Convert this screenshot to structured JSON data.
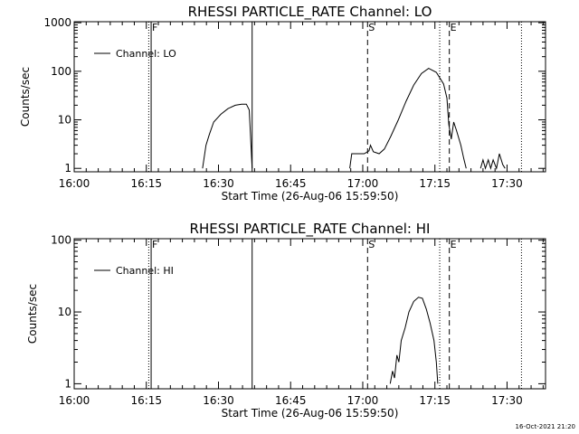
{
  "footer_timestamp": "16-Oct-2021 21:20",
  "chart_data": [
    {
      "type": "line",
      "title": "RHESSI PARTICLE_RATE Channel: LO",
      "xlabel": "Start Time (26-Aug-06 15:59:50)",
      "ylabel": "Counts/sec",
      "yscale": "log",
      "xlim": [
        "16:00",
        "17:38"
      ],
      "ylim": [
        0.85,
        1050
      ],
      "x_ticks": [
        "16:00",
        "16:15",
        "16:30",
        "16:45",
        "17:00",
        "17:15",
        "17:30"
      ],
      "y_ticks": [
        "1",
        "10",
        "100",
        "1000"
      ],
      "legend": {
        "position": "top-left",
        "entries": [
          "Channel: LO"
        ]
      },
      "vertical_markers": [
        {
          "time": "16:15.5",
          "style": "dotted",
          "label": ""
        },
        {
          "time": "16:16",
          "style": "solid",
          "label": "F"
        },
        {
          "time": "16:37",
          "style": "solid",
          "label": ""
        },
        {
          "time": "17:01",
          "style": "dashed",
          "label": "S"
        },
        {
          "time": "17:16",
          "style": "dotted",
          "label": ""
        },
        {
          "time": "17:18",
          "style": "dashed",
          "label": "E"
        },
        {
          "time": "17:33",
          "style": "dotted",
          "label": ""
        }
      ],
      "series": [
        {
          "name": "Channel: LO",
          "segments": [
            [
              [
                "16:26.7",
                1
              ],
              [
                "16:27.4",
                3
              ],
              [
                "16:28.1",
                5
              ],
              [
                "16:29",
                9
              ],
              [
                "16:30.5",
                13
              ],
              [
                "16:32",
                17
              ],
              [
                "16:33.5",
                20
              ],
              [
                "16:34.8",
                21
              ],
              [
                "16:35.8",
                21
              ],
              [
                "16:36.4",
                16
              ],
              [
                "16:37",
                1
              ]
            ],
            [
              [
                "16:57.3",
                1
              ],
              [
                "16:57.7",
                2
              ],
              [
                "16:59",
                2
              ],
              [
                "17:00.3",
                2
              ],
              [
                "17:01.3",
                2.3
              ],
              [
                "17:01.6",
                3
              ],
              [
                "17:02.2",
                2.2
              ],
              [
                "17:03.4",
                2
              ],
              [
                "17:04.5",
                2.5
              ],
              [
                "17:05.8",
                4.5
              ],
              [
                "17:07.4",
                10
              ],
              [
                "17:09",
                24
              ],
              [
                "17:10.6",
                52
              ],
              [
                "17:12.2",
                90
              ],
              [
                "17:13.7",
                115
              ],
              [
                "17:15.3",
                95
              ],
              [
                "17:16.8",
                55
              ],
              [
                "17:17.5",
                28
              ],
              [
                "17:17.9",
                8
              ],
              [
                "17:18.4",
                4
              ],
              [
                "17:18.9",
                9
              ],
              [
                "17:19.5",
                6
              ],
              [
                "17:20.4",
                3
              ],
              [
                "17:21",
                1.6
              ],
              [
                "17:21.5",
                1
              ]
            ],
            [
              [
                "17:24.5",
                1
              ],
              [
                "17:25",
                1.5
              ],
              [
                "17:25.5",
                1
              ],
              [
                "17:26.1",
                1.5
              ],
              [
                "17:26.6",
                1
              ],
              [
                "17:27.1",
                1.5
              ],
              [
                "17:27.8",
                1
              ],
              [
                "17:28.4",
                2
              ],
              [
                "17:29.1",
                1.2
              ],
              [
                "17:29.6",
                1
              ]
            ]
          ]
        }
      ]
    },
    {
      "type": "line",
      "title": "RHESSI PARTICLE_RATE Channel: HI",
      "xlabel": "Start Time (26-Aug-06 15:59:50)",
      "ylabel": "Counts/sec",
      "yscale": "log",
      "xlim": [
        "16:00",
        "17:38"
      ],
      "ylim": [
        0.85,
        105
      ],
      "x_ticks": [
        "16:00",
        "16:15",
        "16:30",
        "16:45",
        "17:00",
        "17:15",
        "17:30"
      ],
      "y_ticks": [
        "1",
        "10",
        "100"
      ],
      "legend": {
        "position": "top-left",
        "entries": [
          "Channel: HI"
        ]
      },
      "vertical_markers": [
        {
          "time": "16:15.5",
          "style": "dotted",
          "label": ""
        },
        {
          "time": "16:16",
          "style": "solid",
          "label": "F"
        },
        {
          "time": "16:37",
          "style": "solid",
          "label": ""
        },
        {
          "time": "17:01",
          "style": "dashed",
          "label": "S"
        },
        {
          "time": "17:16",
          "style": "dotted",
          "label": ""
        },
        {
          "time": "17:18",
          "style": "dashed",
          "label": "E"
        },
        {
          "time": "17:33",
          "style": "dotted",
          "label": ""
        }
      ],
      "series": [
        {
          "name": "Channel: HI",
          "segments": [
            [
              [
                "17:05.7",
                1
              ],
              [
                "17:06.2",
                1.5
              ],
              [
                "17:06.6",
                1.2
              ],
              [
                "17:07.1",
                2.5
              ],
              [
                "17:07.5",
                2
              ],
              [
                "17:08",
                4
              ],
              [
                "17:08.8",
                6
              ],
              [
                "17:09.6",
                10
              ],
              [
                "17:10.6",
                14
              ],
              [
                "17:11.6",
                16
              ],
              [
                "17:12.4",
                15.5
              ],
              [
                "17:13.2",
                11
              ],
              [
                "17:14",
                7
              ],
              [
                "17:14.8",
                4
              ],
              [
                "17:15.3",
                2
              ],
              [
                "17:15.6",
                1
              ]
            ]
          ]
        }
      ]
    }
  ]
}
